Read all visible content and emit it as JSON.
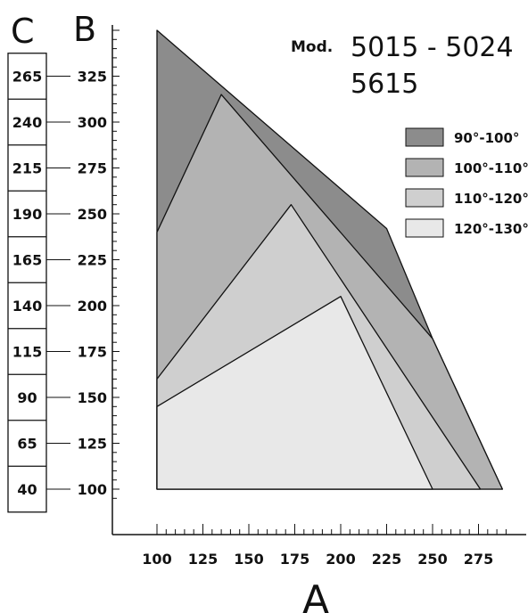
{
  "chart_data": {
    "type": "area",
    "title_prefix": "Mod.",
    "title_line1": "5015 - 5024",
    "title_line2": "5615",
    "xlabel": "A",
    "ylabel_b": "B",
    "ylabel_c": "C",
    "xlim": [
      100,
      290
    ],
    "ylim": [
      100,
      350
    ],
    "x_ticks": [
      "100",
      "125",
      "150",
      "175",
      "200",
      "225",
      "250",
      "275"
    ],
    "b_ticks": [
      "100",
      "125",
      "150",
      "175",
      "200",
      "225",
      "250",
      "275",
      "300",
      "325"
    ],
    "c_ticks": [
      "40",
      "65",
      "90",
      "115",
      "140",
      "165",
      "190",
      "215",
      "240",
      "265"
    ],
    "legend_position": "top-right",
    "series": [
      {
        "name": "90°-100°",
        "color": "#8c8c8c",
        "points": [
          [
            100,
            350
          ],
          [
            225,
            242
          ],
          [
            250,
            182
          ],
          [
            288,
            100
          ],
          [
            100,
            100
          ]
        ]
      },
      {
        "name": "100°-110°",
        "color": "#b3b3b3",
        "points": [
          [
            100,
            240
          ],
          [
            135,
            315
          ],
          [
            250,
            182
          ],
          [
            288,
            100
          ],
          [
            100,
            100
          ]
        ]
      },
      {
        "name": "110°-120°",
        "color": "#cfcfcf",
        "points": [
          [
            100,
            160
          ],
          [
            173,
            255
          ],
          [
            276,
            100
          ],
          [
            100,
            100
          ]
        ]
      },
      {
        "name": "120°-130°",
        "color": "#e8e8e8",
        "points": [
          [
            100,
            145
          ],
          [
            200,
            205
          ],
          [
            250,
            100
          ],
          [
            100,
            100
          ]
        ]
      }
    ]
  }
}
